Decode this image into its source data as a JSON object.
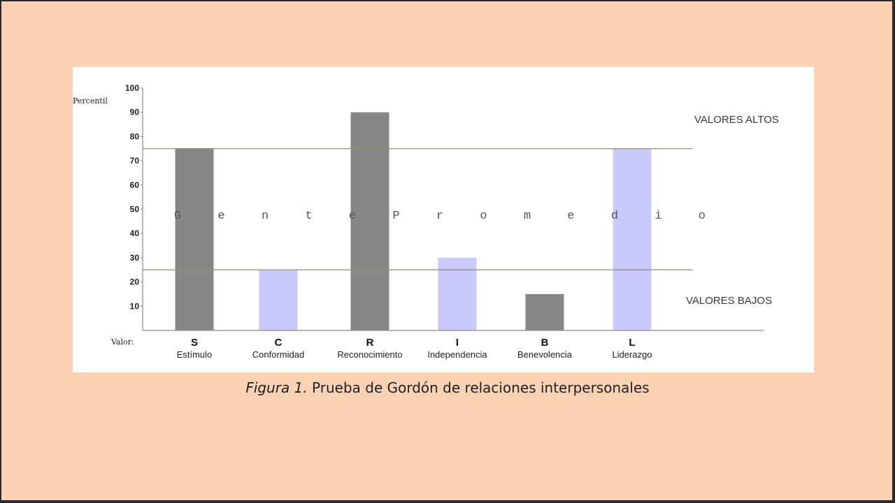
{
  "chart_data": {
    "type": "bar",
    "ylabel": "Percentil",
    "xlabel": "Valor:",
    "ylim": [
      0,
      100
    ],
    "yticks": [
      10,
      20,
      30,
      40,
      50,
      60,
      70,
      80,
      90,
      100
    ],
    "categories": [
      "S",
      "C",
      "R",
      "I",
      "B",
      "L"
    ],
    "category_names": [
      "Estímulo",
      "Conformidad",
      "Reconocimiento",
      "Independencia",
      "Benevolencia",
      "Liderazgo"
    ],
    "values": [
      75,
      25,
      90,
      30,
      15,
      75
    ],
    "bar_colors": [
      "#878787",
      "#c9c9fb",
      "#878787",
      "#c9c9fb",
      "#878787",
      "#c9c9fb"
    ],
    "reference_lines": [
      75,
      25
    ],
    "line_color": "#8e8e78",
    "zone_labels": {
      "high": "VALORES ALTOS",
      "middle": "G e n t e   P r o m e d i o",
      "low": "VALORES BAJOS"
    }
  },
  "caption": {
    "figure_label": "Figura 1.",
    "text": " Prueba de Gordón de relaciones interpersonales"
  }
}
